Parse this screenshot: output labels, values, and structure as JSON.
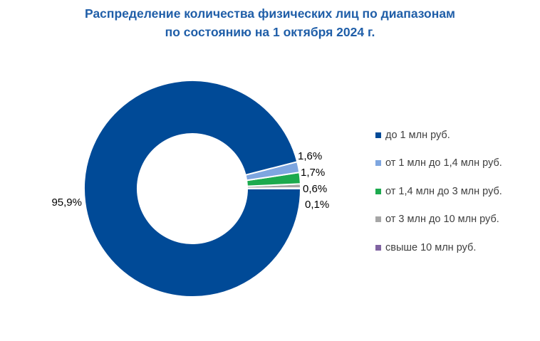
{
  "chart_data": {
    "type": "pie",
    "variant": "donut",
    "title_line1": "Распределение количества физических лиц по диапазонам",
    "title_line2": "по состоянию на 1 октября 2024 г.",
    "legend_position": "right",
    "slices": [
      {
        "label": "до 1 млн руб.",
        "value": 95.9,
        "value_label": "95,9%",
        "color": "#004a97"
      },
      {
        "label": "от 1 млн до 1,4 млн руб.",
        "value": 1.6,
        "value_label": "1,6%",
        "color": "#7ea6e0"
      },
      {
        "label": "от 1,4 млн до 3 млн руб.",
        "value": 1.7,
        "value_label": "1,7%",
        "color": "#1caa4e"
      },
      {
        "label": "от 3 млн до 10 млн руб.",
        "value": 0.6,
        "value_label": "0,6%",
        "color": "#a6a6a6"
      },
      {
        "label": "свыше 10 млн руб.",
        "value": 0.1,
        "value_label": "0,1%",
        "color": "#8064a2"
      }
    ]
  }
}
